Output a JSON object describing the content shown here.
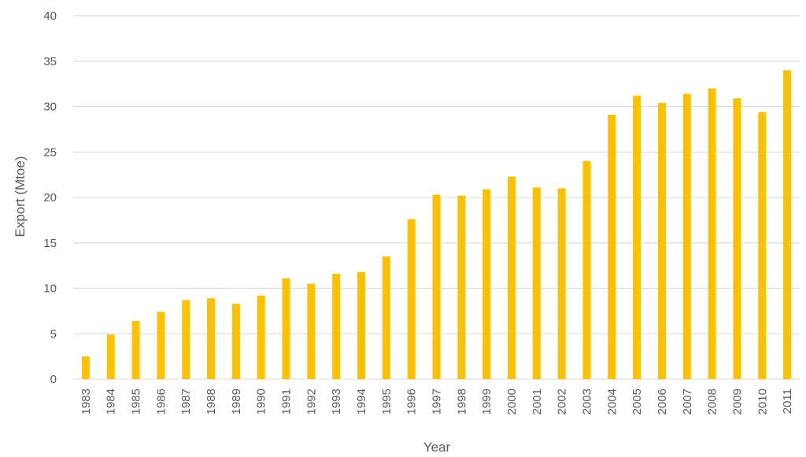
{
  "chart_data": {
    "type": "bar",
    "title": "",
    "xlabel": "Year",
    "ylabel": "Export (Mtoe)",
    "ylim": [
      0,
      40
    ],
    "yticks": [
      0,
      5,
      10,
      15,
      20,
      25,
      30,
      35,
      40
    ],
    "grid": "horizontal",
    "legend": "none",
    "bar_color": "#FFC000",
    "categories": [
      "1983",
      "1984",
      "1985",
      "1986",
      "1987",
      "1988",
      "1989",
      "1990",
      "1991",
      "1992",
      "1993",
      "1994",
      "1995",
      "1996",
      "1997",
      "1998",
      "1999",
      "2000",
      "2001",
      "2002",
      "2003",
      "2004",
      "2005",
      "2006",
      "2007",
      "2008",
      "2009",
      "2010",
      "2011"
    ],
    "values": [
      2.5,
      4.9,
      6.4,
      7.4,
      8.7,
      8.9,
      8.3,
      9.2,
      11.1,
      10.5,
      11.6,
      11.8,
      13.5,
      17.6,
      20.3,
      20.2,
      20.9,
      22.3,
      21.1,
      21.0,
      24.0,
      29.1,
      31.2,
      30.4,
      31.4,
      32.0,
      30.9,
      29.4,
      34.0
    ]
  }
}
